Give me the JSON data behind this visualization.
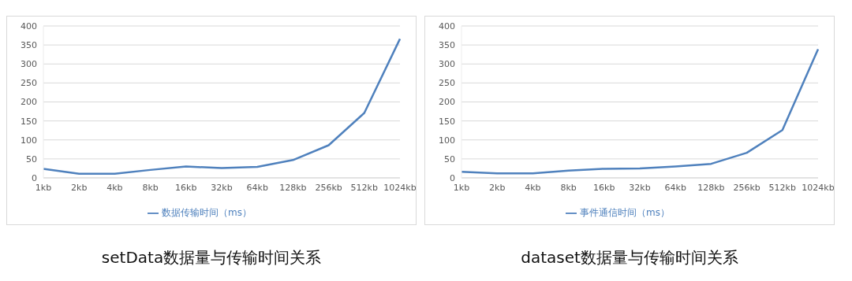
{
  "chart_data": [
    {
      "type": "line",
      "title": "setData数据量与传输时间关系",
      "categories": [
        "1kb",
        "2kb",
        "4kb",
        "8kb",
        "16kb",
        "32kb",
        "64kb",
        "128kb",
        "256kb",
        "512kb",
        "1024kb"
      ],
      "series": [
        {
          "name": "数据传输时间（ms）",
          "color": "#4f81bd",
          "values": [
            24,
            11,
            11,
            21,
            30,
            26,
            29,
            47,
            86,
            171,
            366
          ]
        }
      ],
      "ylim": [
        0,
        400
      ],
      "yticks": [
        0,
        50,
        100,
        150,
        200,
        250,
        300,
        350,
        400
      ],
      "grid": "y",
      "legend": "bottom",
      "marker": "none",
      "line_style": "solid"
    },
    {
      "type": "line",
      "title": "dataset数据量与传输时间关系",
      "categories": [
        "1kb",
        "2kb",
        "4kb",
        "8kb",
        "16kb",
        "32kb",
        "64kb",
        "128kb",
        "256kb",
        "512kb",
        "1024kb"
      ],
      "series": [
        {
          "name": "事件通信时间（ms）",
          "color": "#4f81bd",
          "values": [
            16,
            12,
            12,
            19,
            24,
            25,
            30,
            37,
            66,
            126,
            339
          ]
        }
      ],
      "ylim": [
        0,
        400
      ],
      "yticks": [
        0,
        50,
        100,
        150,
        200,
        250,
        300,
        350,
        400
      ],
      "grid": "y",
      "legend": "bottom",
      "marker": "none",
      "line_style": "solid"
    }
  ]
}
